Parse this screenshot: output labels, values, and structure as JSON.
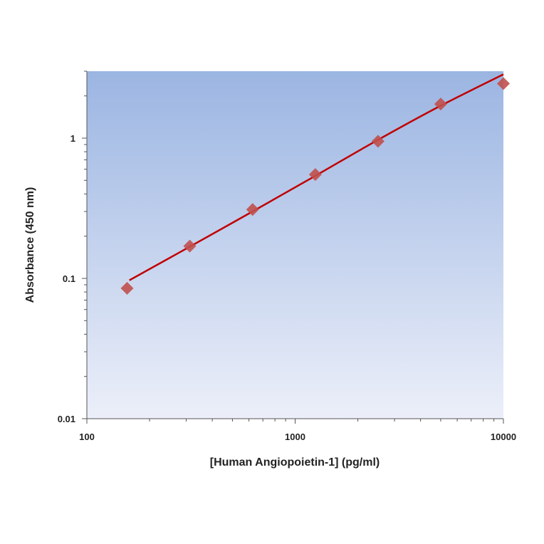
{
  "chart_data": {
    "type": "scatter",
    "title": "",
    "xlabel": "[Human Angiopoietin-1] (pg/ml)",
    "ylabel": "Absorbance (450 nm)",
    "xscale": "log",
    "yscale": "log",
    "xlim": [
      100,
      10000
    ],
    "ylim": [
      0.01,
      3
    ],
    "x_ticks": [
      100,
      1000,
      10000
    ],
    "x_tick_labels": [
      "100",
      "1000",
      "10000"
    ],
    "y_ticks": [
      0.01,
      0.1,
      1
    ],
    "y_tick_labels": [
      "0.01",
      "0.1",
      "1"
    ],
    "grid": false,
    "legend": "none",
    "series": [
      {
        "kind": "points",
        "marker": "diamond",
        "color": "#c0504d",
        "x": [
          156,
          312,
          625,
          1250,
          2500,
          5000,
          10000
        ],
        "y": [
          0.085,
          0.17,
          0.31,
          0.55,
          0.95,
          1.75,
          2.45
        ]
      },
      {
        "kind": "fit-line",
        "color": "#c00000",
        "x": [
          160,
          300,
          600,
          1200,
          2400,
          4800,
          10000
        ],
        "y": [
          0.097,
          0.163,
          0.29,
          0.52,
          0.94,
          1.65,
          2.85
        ]
      }
    ],
    "colors": {
      "plot_bg_top": "#9bb5e2",
      "plot_bg_bottom": "#eceff9",
      "axis": "#555555"
    }
  }
}
